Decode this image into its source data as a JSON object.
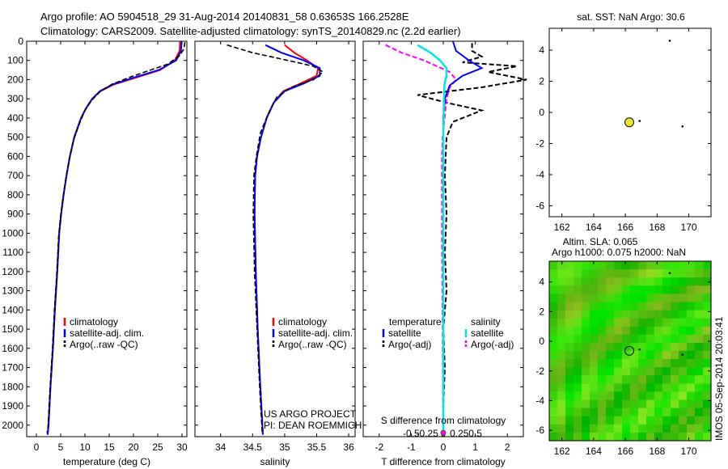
{
  "header": {
    "line1": "Argo profile: AO 5904518_29 31-Aug-2014 20140831_58 0.63653S 166.2528E",
    "line2": "Climatology: CARS2009. Satellite-adjusted climatology: synTS_20140829.nc (2.2d earlier)"
  },
  "colors": {
    "climatology": "#ff0000",
    "satellite": "#0000ff",
    "argo": "#000000",
    "sat_salinity": "#00e5e5",
    "argo_salinity": "#ff00ff",
    "marker": "#e8e82a",
    "sla_green": "#33cc33"
  },
  "depth_axis": {
    "ylim": [
      0,
      2060
    ],
    "ticks": [
      0,
      100,
      200,
      300,
      400,
      500,
      600,
      700,
      800,
      900,
      1000,
      1100,
      1200,
      1300,
      1400,
      1500,
      1600,
      1700,
      1800,
      1900,
      2000
    ],
    "tick_labels": [
      "0",
      "100",
      "200",
      "300",
      "400",
      "500",
      "600",
      "700",
      "800",
      "900",
      "1000",
      "1100",
      "1200",
      "1300",
      "1400",
      "1500",
      "1600",
      "1700",
      "1800",
      "1900",
      "2000"
    ]
  },
  "temperature_panel": {
    "xlabel": "temperature (deg C)",
    "xlim": [
      -2,
      31
    ],
    "xticks": [
      0,
      5,
      10,
      15,
      20,
      25,
      30
    ],
    "xtick_labels": [
      "0",
      "5",
      "10",
      "15",
      "20",
      "25",
      "30"
    ],
    "legend": [
      "climatology",
      "satellite-adj. clim.",
      "Argo(..raw -QC)"
    ]
  },
  "salinity_panel": {
    "xlabel": "salinity",
    "xlim": [
      33.6,
      36.1
    ],
    "xticks": [
      34,
      34.5,
      35,
      35.5,
      36
    ],
    "xtick_labels": [
      "34",
      "34.5",
      "35",
      "35.5",
      "36"
    ],
    "legend": [
      "climatology",
      "satellite-adj. clim.",
      "Argo(..raw -QC)"
    ],
    "credit1": "US ARGO PROJECT",
    "credit2": "PI: DEAN ROEMMICH"
  },
  "difference_panel": {
    "xlabel": "T difference from climatology",
    "xlim": [
      -2.5,
      2.5
    ],
    "xticks": [
      -2,
      -1,
      0,
      1,
      2
    ],
    "xtick_labels": [
      "-2",
      "-1",
      "0",
      "1",
      "2"
    ],
    "sdiff_label": "S difference from climatology",
    "sdiff_ticks": [
      -0.5,
      -0.25,
      0,
      0.25,
      0.5
    ],
    "sdiff_tick_labels": [
      "-0.5",
      "-0.25",
      "0",
      "0.25",
      "0.5"
    ],
    "legend_temp_title": "temperature",
    "legend_sal_title": "salinity",
    "legend_temp": [
      "satellite",
      "Argo(-adj)"
    ],
    "legend_sal": [
      "satellite",
      "Argo(-adj)"
    ]
  },
  "sst_map": {
    "title": "sat. SST: NaN Argo: 30.6",
    "xlim": [
      161.2,
      171.4
    ],
    "ylim": [
      -6.7,
      5.4
    ],
    "xticks": [
      162,
      164,
      166,
      168,
      170
    ],
    "xtick_labels": [
      "162",
      "164",
      "166",
      "168",
      "170"
    ],
    "yticks": [
      4,
      2,
      0,
      -2,
      -4,
      -6
    ],
    "ytick_labels": [
      "4",
      "2",
      "0",
      "-2",
      "-4",
      "-6"
    ],
    "argo_position": [
      166.25,
      -0.64
    ],
    "dots": [
      [
        168.8,
        4.6
      ],
      [
        166.9,
        -0.55
      ],
      [
        169.6,
        -0.9
      ]
    ]
  },
  "sla_map": {
    "title1": "Altim. SLA: 0.065",
    "title2": "Argo h1000: 0.075 h2000: NaN",
    "xlim": [
      161.2,
      171.4
    ],
    "ylim": [
      -6.7,
      5.4
    ],
    "xticks": [
      162,
      164,
      166,
      168,
      170
    ],
    "xtick_labels": [
      "162",
      "164",
      "166",
      "168",
      "170"
    ],
    "yticks": [
      4,
      2,
      0,
      -2,
      -4,
      -6
    ],
    "ytick_labels": [
      "4",
      "2",
      "0",
      "-2",
      "-4",
      "-6"
    ],
    "argo_position": [
      166.25,
      -0.64
    ],
    "dots": [
      [
        168.8,
        4.6
      ],
      [
        166.9,
        -0.55
      ],
      [
        169.6,
        -0.9
      ]
    ]
  },
  "side_label": "IMOS 05-Sep-2014 20:03:41",
  "chart_data": [
    {
      "type": "line",
      "name": "temperature profile",
      "xlabel": "temperature (deg C)",
      "ylabel": "",
      "xlim": [
        -2,
        31
      ],
      "ylim": [
        2060,
        0
      ],
      "series": [
        {
          "name": "climatology",
          "points": [
            [
              29.6,
              0
            ],
            [
              29.5,
              50
            ],
            [
              28.5,
              100
            ],
            [
              25.5,
              150
            ],
            [
              20.5,
              190
            ],
            [
              16,
              225
            ],
            [
              13.2,
              260
            ],
            [
              11.5,
              300
            ],
            [
              10.2,
              350
            ],
            [
              9.2,
              400
            ],
            [
              7.8,
              500
            ],
            [
              6.9,
              600
            ],
            [
              6.2,
              700
            ],
            [
              5.6,
              800
            ],
            [
              5.1,
              900
            ],
            [
              4.7,
              1000
            ],
            [
              4.3,
              1200
            ],
            [
              3.8,
              1400
            ],
            [
              3.4,
              1600
            ],
            [
              2.9,
              1800
            ],
            [
              2.5,
              2000
            ],
            [
              2.3,
              2050
            ]
          ]
        },
        {
          "name": "satellite-adj. clim.",
          "points": [
            [
              29.9,
              0
            ],
            [
              29.8,
              50
            ],
            [
              28.8,
              100
            ],
            [
              25.2,
              150
            ],
            [
              20,
              190
            ],
            [
              15.7,
              225
            ],
            [
              13.1,
              260
            ],
            [
              11.5,
              300
            ],
            [
              10.2,
              350
            ],
            [
              9.2,
              400
            ],
            [
              7.8,
              500
            ],
            [
              6.9,
              600
            ],
            [
              6.2,
              700
            ],
            [
              5.6,
              800
            ],
            [
              5.1,
              900
            ],
            [
              4.7,
              1000
            ],
            [
              4.3,
              1200
            ],
            [
              3.8,
              1400
            ],
            [
              3.4,
              1600
            ],
            [
              2.9,
              1800
            ],
            [
              2.5,
              2000
            ],
            [
              2.3,
              2050
            ]
          ]
        },
        {
          "name": "Argo(..raw -QC)",
          "points": [
            [
              30.6,
              5
            ],
            [
              30.4,
              40
            ],
            [
              29.5,
              75
            ],
            [
              27,
              120
            ],
            [
              23.5,
              150
            ],
            [
              19.5,
              185
            ],
            [
              15.5,
              225
            ],
            [
              13,
              265
            ],
            [
              11.3,
              310
            ],
            [
              10,
              360
            ],
            [
              9,
              420
            ],
            [
              7.7,
              510
            ],
            [
              6.8,
              610
            ],
            [
              6.1,
              710
            ],
            [
              5.5,
              810
            ],
            [
              5,
              910
            ],
            [
              4.6,
              1010
            ],
            [
              4.2,
              1210
            ],
            [
              3.7,
              1410
            ],
            [
              3.3,
              1610
            ],
            [
              2.8,
              1810
            ],
            [
              2.4,
              2010
            ],
            [
              2.2,
              2040
            ]
          ]
        }
      ]
    },
    {
      "type": "line",
      "name": "salinity profile",
      "xlabel": "salinity",
      "ylabel": "",
      "xlim": [
        33.6,
        36.1
      ],
      "ylim": [
        2060,
        0
      ],
      "series": [
        {
          "name": "climatology",
          "points": [
            [
              35.0,
              20
            ],
            [
              35.15,
              60
            ],
            [
              35.35,
              100
            ],
            [
              35.52,
              140
            ],
            [
              35.5,
              180
            ],
            [
              35.25,
              220
            ],
            [
              34.98,
              260
            ],
            [
              34.83,
              320
            ],
            [
              34.72,
              400
            ],
            [
              34.63,
              500
            ],
            [
              34.57,
              600
            ],
            [
              34.54,
              700
            ],
            [
              34.53,
              900
            ],
            [
              34.55,
              1200
            ],
            [
              34.58,
              1500
            ],
            [
              34.62,
              1800
            ],
            [
              34.66,
              2050
            ]
          ]
        },
        {
          "name": "satellite-adj. clim.",
          "points": [
            [
              34.7,
              20
            ],
            [
              34.95,
              60
            ],
            [
              35.3,
              100
            ],
            [
              35.55,
              140
            ],
            [
              35.55,
              180
            ],
            [
              35.3,
              220
            ],
            [
              35.0,
              260
            ],
            [
              34.83,
              320
            ],
            [
              34.72,
              400
            ],
            [
              34.63,
              500
            ],
            [
              34.57,
              600
            ],
            [
              34.54,
              700
            ],
            [
              34.53,
              900
            ],
            [
              34.55,
              1200
            ],
            [
              34.58,
              1500
            ],
            [
              34.62,
              1800
            ],
            [
              34.66,
              2050
            ]
          ]
        },
        {
          "name": "Argo(..raw -QC)",
          "points": [
            [
              34.1,
              20
            ],
            [
              34.5,
              60
            ],
            [
              35.05,
              100
            ],
            [
              35.45,
              130
            ],
            [
              35.6,
              160
            ],
            [
              35.45,
              200
            ],
            [
              35.1,
              240
            ],
            [
              34.88,
              290
            ],
            [
              34.74,
              380
            ],
            [
              34.62,
              480
            ],
            [
              34.56,
              600
            ],
            [
              34.52,
              700
            ],
            [
              34.51,
              900
            ],
            [
              34.53,
              1200
            ],
            [
              34.57,
              1500
            ],
            [
              34.61,
              1800
            ],
            [
              34.65,
              2040
            ]
          ]
        }
      ]
    },
    {
      "type": "line",
      "name": "difference from climatology",
      "xlabel": "T difference from climatology",
      "ylabel": "",
      "xlim": [
        -2.5,
        2.5
      ],
      "ylim": [
        2060,
        0
      ],
      "series": [
        {
          "name": "temperature satellite",
          "points": [
            [
              0.3,
              0
            ],
            [
              0.4,
              50
            ],
            [
              0.8,
              100
            ],
            [
              1.2,
              140
            ],
            [
              0.6,
              180
            ],
            [
              0.2,
              230
            ],
            [
              0.05,
              300
            ],
            [
              0,
              400
            ],
            [
              0,
              600
            ],
            [
              0,
              1000
            ],
            [
              0,
              1500
            ],
            [
              0,
              2050
            ]
          ]
        },
        {
          "name": "temperature Argo(-adj)",
          "points": [
            [
              0.9,
              10
            ],
            [
              0.9,
              50
            ],
            [
              1.2,
              80
            ],
            [
              0.6,
              110
            ],
            [
              2.3,
              130
            ],
            [
              1.4,
              160
            ],
            [
              2.6,
              200
            ],
            [
              1.2,
              240
            ],
            [
              -0.8,
              280
            ],
            [
              0.1,
              320
            ],
            [
              1.2,
              360
            ],
            [
              0.3,
              420
            ],
            [
              0.1,
              500
            ],
            [
              0.05,
              700
            ],
            [
              0.1,
              900
            ],
            [
              0.05,
              1100
            ],
            [
              0.1,
              1300
            ],
            [
              0.0,
              1500
            ],
            [
              0.05,
              1700
            ],
            [
              0.0,
              1900
            ],
            [
              0.0,
              2040
            ]
          ]
        },
        {
          "name": "salinity satellite",
          "points": [
            [
              -0.4,
              20
            ],
            [
              -0.2,
              60
            ],
            [
              -0.05,
              100
            ],
            [
              0.05,
              140
            ],
            [
              0.05,
              180
            ],
            [
              0.02,
              220
            ],
            [
              0.01,
              300
            ],
            [
              0,
              500
            ],
            [
              0,
              1000
            ],
            [
              0,
              1500
            ],
            [
              0,
              2050
            ]
          ]
        },
        {
          "name": "salinity Argo(-adj)",
          "points": [
            [
              -0.9,
              20
            ],
            [
              -0.65,
              60
            ],
            [
              -0.3,
              100
            ],
            [
              -0.1,
              130
            ],
            [
              0.1,
              160
            ],
            [
              0.2,
              200
            ],
            [
              0.1,
              240
            ],
            [
              0.05,
              300
            ],
            [
              0.02,
              400
            ],
            [
              -0.01,
              500
            ],
            [
              -0.02,
              600
            ],
            [
              -0.02,
              800
            ],
            [
              -0.02,
              1000
            ],
            [
              -0.01,
              1500
            ],
            [
              0,
              2040
            ]
          ]
        }
      ]
    }
  ]
}
